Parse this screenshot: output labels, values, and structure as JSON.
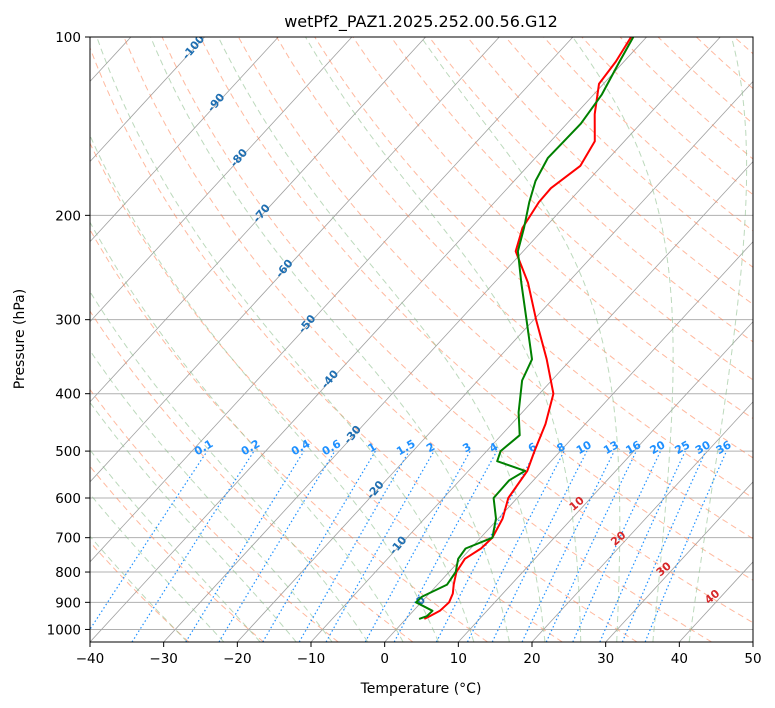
{
  "chart_data": {
    "type": "line",
    "subtype": "skew-t log-p diagram",
    "title": "wetPf2_PAZ1.2025.252.00.56.G12",
    "xlabel": "Temperature (°C)",
    "ylabel": "Pressure (hPa)",
    "xlim": [
      -40,
      50
    ],
    "ylim": [
      1050,
      100
    ],
    "x_ticks": [
      -40,
      -30,
      -20,
      -10,
      0,
      10,
      20,
      30,
      40,
      50
    ],
    "x_tick_labels": [
      "−40",
      "−30",
      "−20",
      "−10",
      "0",
      "10",
      "20",
      "30",
      "40",
      "50"
    ],
    "y_ticks": [
      100,
      200,
      300,
      400,
      500,
      600,
      700,
      800,
      900,
      1000
    ],
    "y_tick_labels": [
      "100",
      "200",
      "300",
      "400",
      "500",
      "600",
      "700",
      "800",
      "900",
      "1000"
    ],
    "grid": true,
    "series": [
      {
        "name": "temperature",
        "color": "#ff0000",
        "points": [
          {
            "p": 960,
            "t": 2.5
          },
          {
            "p": 950,
            "t": 2.9
          },
          {
            "p": 930,
            "t": 3.6
          },
          {
            "p": 900,
            "t": 3.8
          },
          {
            "p": 870,
            "t": 3.2
          },
          {
            "p": 840,
            "t": 2.2
          },
          {
            "p": 800,
            "t": 1.0
          },
          {
            "p": 760,
            "t": 0.5
          },
          {
            "p": 730,
            "t": 1.4
          },
          {
            "p": 700,
            "t": 1.6
          },
          {
            "p": 650,
            "t": 0.6
          },
          {
            "p": 600,
            "t": -1.2
          },
          {
            "p": 540,
            "t": -2.0
          },
          {
            "p": 500,
            "t": -3.5
          },
          {
            "p": 450,
            "t": -5.4
          },
          {
            "p": 400,
            "t": -8.1
          },
          {
            "p": 350,
            "t": -13.3
          },
          {
            "p": 300,
            "t": -19.7
          },
          {
            "p": 260,
            "t": -25.4
          },
          {
            "p": 230,
            "t": -31.0
          },
          {
            "p": 210,
            "t": -33.0
          },
          {
            "p": 190,
            "t": -34.0
          },
          {
            "p": 180,
            "t": -34.1
          },
          {
            "p": 165,
            "t": -32.9
          },
          {
            "p": 150,
            "t": -34.0
          },
          {
            "p": 135,
            "t": -37.4
          },
          {
            "p": 120,
            "t": -40.6
          },
          {
            "p": 110,
            "t": -41.1
          },
          {
            "p": 100,
            "t": -42.1
          }
        ]
      },
      {
        "name": "dewpoint",
        "color": "#008000",
        "points": [
          {
            "p": 960,
            "t": 1.8
          },
          {
            "p": 950,
            "t": 2.5
          },
          {
            "p": 930,
            "t": 2.6
          },
          {
            "p": 900,
            "t": -0.7
          },
          {
            "p": 880,
            "t": -0.6
          },
          {
            "p": 840,
            "t": 1.3
          },
          {
            "p": 800,
            "t": 0.9
          },
          {
            "p": 760,
            "t": -0.4
          },
          {
            "p": 730,
            "t": -0.7
          },
          {
            "p": 700,
            "t": 1.6
          },
          {
            "p": 650,
            "t": -0.3
          },
          {
            "p": 600,
            "t": -3.2
          },
          {
            "p": 560,
            "t": -3.3
          },
          {
            "p": 540,
            "t": -2.3
          },
          {
            "p": 520,
            "t": -7.3
          },
          {
            "p": 500,
            "t": -8.1
          },
          {
            "p": 470,
            "t": -7.5
          },
          {
            "p": 430,
            "t": -10.5
          },
          {
            "p": 380,
            "t": -14.0
          },
          {
            "p": 350,
            "t": -15.3
          },
          {
            "p": 300,
            "t": -21.0
          },
          {
            "p": 260,
            "t": -26.3
          },
          {
            "p": 230,
            "t": -30.7
          },
          {
            "p": 210,
            "t": -32.8
          },
          {
            "p": 190,
            "t": -35.3
          },
          {
            "p": 175,
            "t": -37.1
          },
          {
            "p": 160,
            "t": -38.3
          },
          {
            "p": 150,
            "t": -38.2
          },
          {
            "p": 140,
            "t": -38.1
          },
          {
            "p": 125,
            "t": -38.9
          },
          {
            "p": 110,
            "t": -40.6
          },
          {
            "p": 100,
            "t": -41.8
          }
        ]
      }
    ],
    "mixing_ratio_labels": [
      "0.1",
      "0.2",
      "0.4",
      "0.6",
      "1",
      "1.5",
      "2",
      "3",
      "4",
      "6",
      "8",
      "10",
      "13",
      "16",
      "20",
      "25",
      "30",
      "36"
    ],
    "dry_adiabat_labels": [
      "-100",
      "-90",
      "-80",
      "-70",
      "-60",
      "-50",
      "-40",
      "-30",
      "-20",
      "-10",
      "0"
    ],
    "moist_adiabat_labels": [
      "10",
      "20",
      "30",
      "40"
    ],
    "colors": {
      "dry_adiabat": "#ff7f50",
      "moist_adiabat": "#8fbf8f",
      "mixing_ratio": "#1e90ff",
      "isotherm": "#808080",
      "label_mixing": "#1e90ff",
      "label_dry": "#1f6fb2",
      "label_moist": "#d62728"
    }
  }
}
